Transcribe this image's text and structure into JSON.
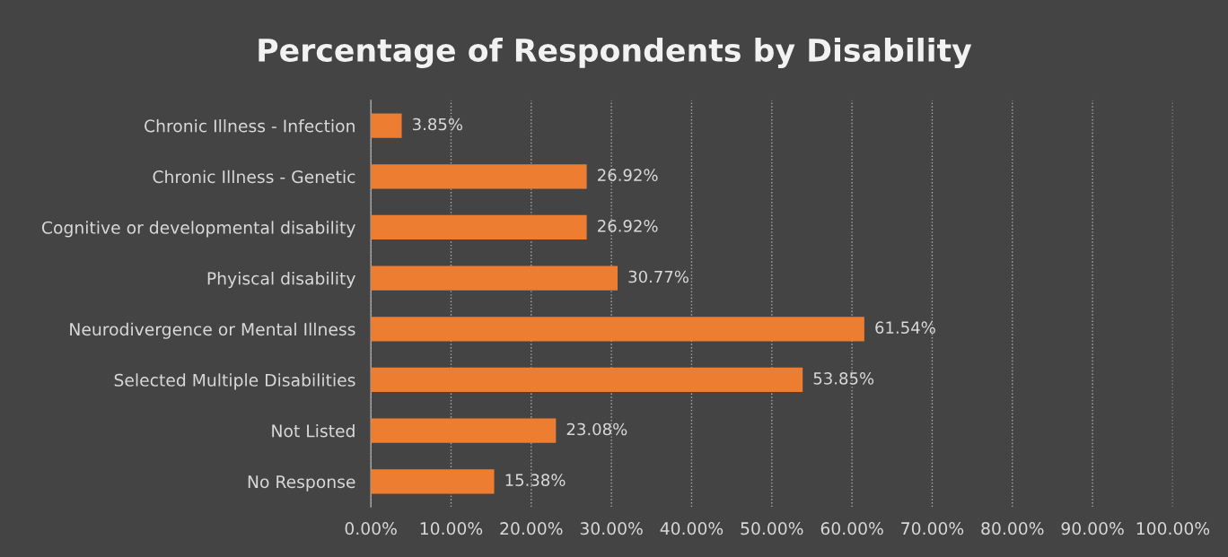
{
  "chart_data": {
    "type": "bar",
    "orientation": "horizontal",
    "title": "Percentage of Respondents by Disability",
    "categories": [
      "Chronic Illness - Infection",
      "Chronic Illness - Genetic",
      "Cognitive or developmental disability",
      "Phyiscal disability",
      "Neurodivergence or Mental Illness",
      "Selected Multiple Disabilities",
      "Not Listed",
      "No Response"
    ],
    "values": [
      3.85,
      26.92,
      26.92,
      30.77,
      61.54,
      53.85,
      23.08,
      15.38
    ],
    "value_labels": [
      "3.85%",
      "26.92%",
      "26.92%",
      "30.77%",
      "61.54%",
      "53.85%",
      "23.08%",
      "15.38%"
    ],
    "color": "#ed7d31",
    "xlim": [
      0,
      100
    ],
    "xticks": [
      {
        "value": 0,
        "label": "0.00%"
      },
      {
        "value": 10,
        "label": "10.00%"
      },
      {
        "value": 20,
        "label": "20.00%"
      },
      {
        "value": 30,
        "label": "30.00%"
      },
      {
        "value": 40,
        "label": "40.00%"
      },
      {
        "value": 50,
        "label": "50.00%"
      },
      {
        "value": 60,
        "label": "60.00%"
      },
      {
        "value": 70,
        "label": "70.00%"
      },
      {
        "value": 80,
        "label": "80.00%"
      },
      {
        "value": 90,
        "label": "90.00%"
      },
      {
        "value": 100,
        "label": "100.00%"
      }
    ],
    "grid": "x"
  }
}
